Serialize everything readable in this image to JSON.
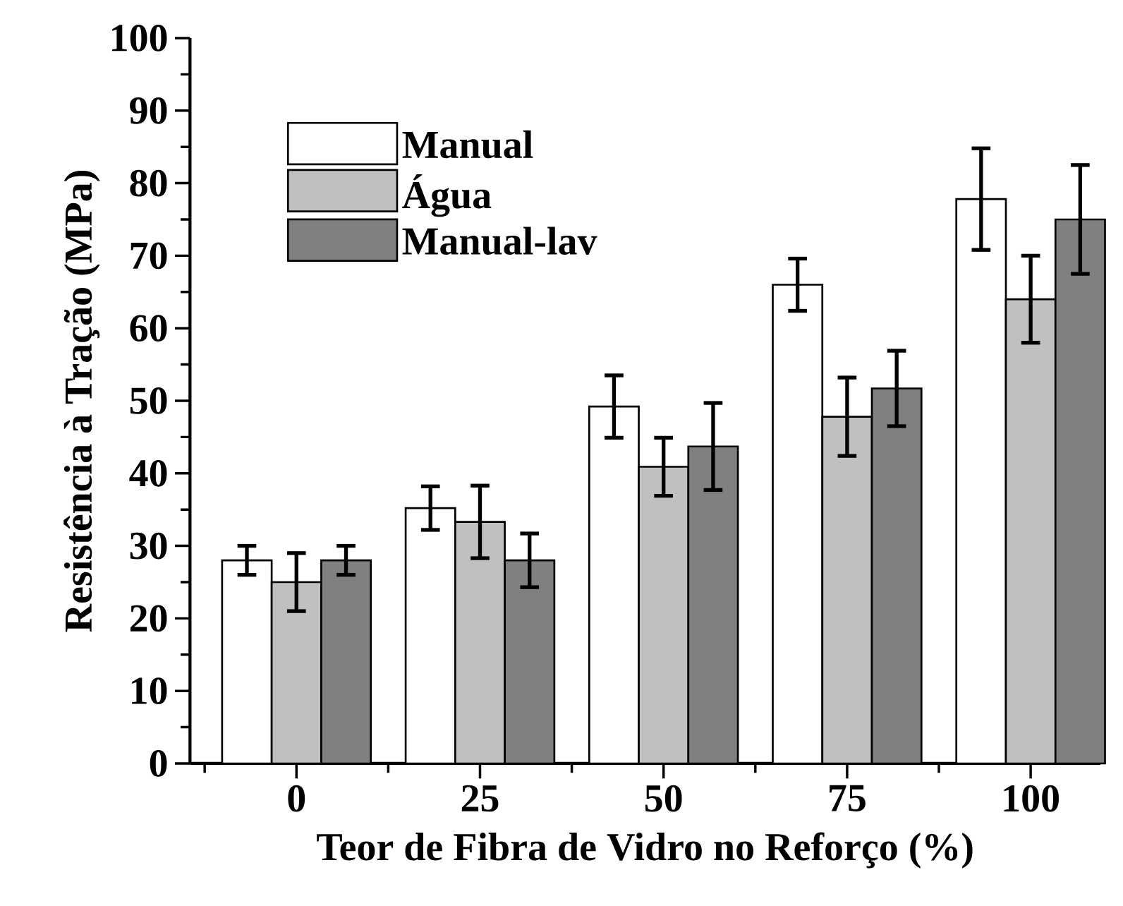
{
  "chart_data": {
    "type": "bar",
    "xlabel": "Teor de Fibra de Vidro no Reforço (%)",
    "ylabel": "Resistência à Tração (MPa)",
    "categories": [
      "0",
      "25",
      "50",
      "75",
      "100"
    ],
    "series": [
      {
        "name": "Manual",
        "color": "#ffffff",
        "values": [
          28,
          35.2,
          49.2,
          66,
          77.8
        ],
        "errors": [
          2,
          3,
          4.3,
          3.6,
          7
        ]
      },
      {
        "name": "Água",
        "color": "#c0c0c0",
        "values": [
          25,
          33.3,
          40.9,
          47.8,
          64
        ],
        "errors": [
          4,
          5,
          4,
          5.4,
          6
        ]
      },
      {
        "name": "Manual-lav",
        "color": "#808080",
        "values": [
          28,
          28,
          43.7,
          51.7,
          75
        ],
        "errors": [
          2,
          3.7,
          6,
          5.2,
          7.5
        ]
      }
    ],
    "ylim": [
      0,
      100
    ],
    "yticks": [
      0,
      10,
      20,
      30,
      40,
      50,
      60,
      70,
      80,
      90,
      100
    ],
    "grid": false,
    "legend": "top left"
  }
}
